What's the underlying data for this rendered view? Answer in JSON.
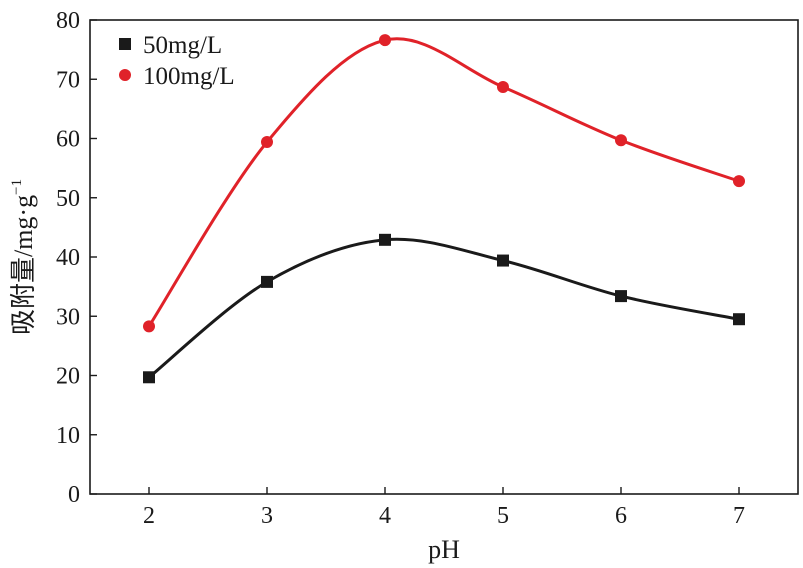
{
  "chart_data": {
    "type": "line",
    "title": "",
    "xlabel": "pH",
    "ylabel": "吸附量/mg·g",
    "ylabel_superscript": "−1",
    "x": [
      2,
      3,
      4,
      5,
      6,
      7
    ],
    "xlim": [
      1.5,
      7.5
    ],
    "ylim": [
      0,
      80
    ],
    "xticks": [
      2,
      3,
      4,
      5,
      6,
      7
    ],
    "yticks": [
      0,
      10,
      20,
      30,
      40,
      50,
      60,
      70,
      80
    ],
    "grid": false,
    "legend_position": "top-left",
    "series": [
      {
        "name": "50mg/L",
        "marker": "square",
        "color": "#1a1a1a",
        "values": [
          19.7,
          35.8,
          42.9,
          39.4,
          33.4,
          29.5
        ]
      },
      {
        "name": "100mg/L",
        "marker": "circle",
        "color": "#e02229",
        "values": [
          28.3,
          59.4,
          76.6,
          68.7,
          59.7,
          52.8
        ]
      }
    ]
  }
}
